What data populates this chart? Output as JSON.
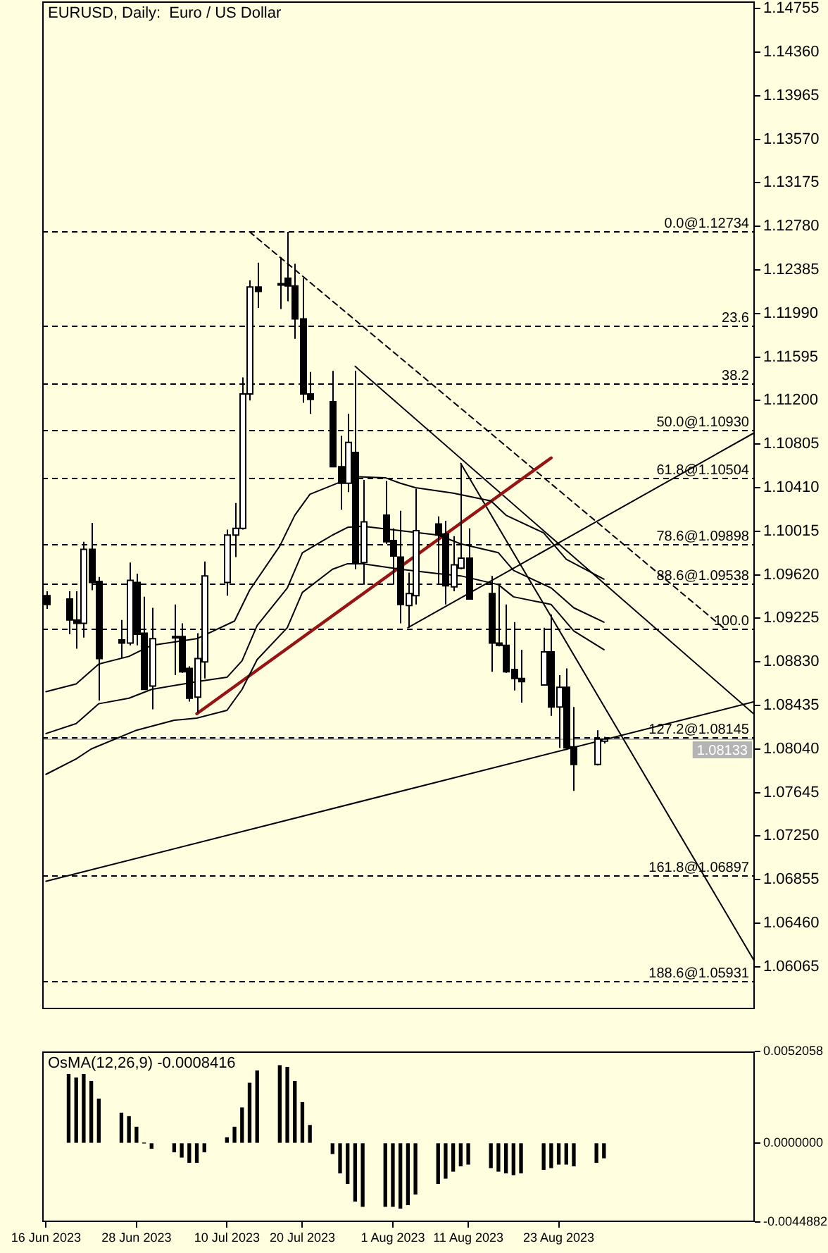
{
  "chart_data": [
    {
      "type": "candlestick",
      "title": "EURUSD, Daily:  Euro / US Dollar",
      "x": [
        "2023-06-16",
        "2023-06-19",
        "2023-06-20",
        "2023-06-21",
        "2023-06-22",
        "2023-06-23",
        "2023-06-26",
        "2023-06-27",
        "2023-06-28",
        "2023-06-29",
        "2023-06-30",
        "2023-07-03",
        "2023-07-04",
        "2023-07-05",
        "2023-07-06",
        "2023-07-07",
        "2023-07-10",
        "2023-07-11",
        "2023-07-12",
        "2023-07-13",
        "2023-07-14",
        "2023-07-17",
        "2023-07-18",
        "2023-07-19",
        "2023-07-20",
        "2023-07-21",
        "2023-07-24",
        "2023-07-25",
        "2023-07-26",
        "2023-07-27",
        "2023-07-28",
        "2023-07-31",
        "2023-08-01",
        "2023-08-02",
        "2023-08-03",
        "2023-08-04",
        "2023-08-07",
        "2023-08-08",
        "2023-08-09",
        "2023-08-10",
        "2023-08-11",
        "2023-08-14",
        "2023-08-15",
        "2023-08-16",
        "2023-08-17",
        "2023-08-18",
        "2023-08-21",
        "2023-08-22",
        "2023-08-23",
        "2023-08-24",
        "2023-08-25",
        "2023-08-28",
        "2023-08-29"
      ],
      "ohlc": [
        [
          1.0943,
          1.0947,
          1.0931,
          1.0935
        ],
        [
          1.094,
          1.0947,
          1.0908,
          1.0921
        ],
        [
          1.0921,
          1.0947,
          1.0895,
          1.0918
        ],
        [
          1.0918,
          1.0992,
          1.0905,
          1.0985
        ],
        [
          1.0985,
          1.1009,
          1.0948,
          1.0955
        ],
        [
          1.0956,
          1.096,
          1.0848,
          1.0886
        ],
        [
          1.0903,
          1.0921,
          1.0887,
          1.09
        ],
        [
          1.09,
          1.0973,
          1.0898,
          1.0957
        ],
        [
          1.0955,
          1.0963,
          1.0898,
          1.0908
        ],
        [
          1.0909,
          1.0942,
          1.0858,
          1.0858
        ],
        [
          1.0861,
          1.0932,
          1.084,
          1.0904
        ],
        [
          1.0906,
          1.0935,
          1.0871,
          1.0905
        ],
        [
          1.0906,
          1.0918,
          1.0873,
          1.0874
        ],
        [
          1.0877,
          1.0879,
          1.0847,
          1.085
        ],
        [
          1.0851,
          1.0909,
          1.0837,
          1.0886
        ],
        [
          1.0883,
          1.0974,
          1.0868,
          1.0961
        ],
        [
          1.0955,
          1.1003,
          1.0943,
          1.0998
        ],
        [
          1.0998,
          1.1027,
          1.0978,
          1.1004
        ],
        [
          1.1004,
          1.1141,
          1.1003,
          1.1126
        ],
        [
          1.1126,
          1.1229,
          1.112,
          1.1223
        ],
        [
          1.1223,
          1.1245,
          1.1204,
          1.1219
        ],
        [
          1.1226,
          1.125,
          1.1203,
          1.1225
        ],
        [
          1.1231,
          1.1273,
          1.121,
          1.1224
        ],
        [
          1.1224,
          1.1244,
          1.1176,
          1.1194
        ],
        [
          1.1194,
          1.1231,
          1.1118,
          1.1126
        ],
        [
          1.1126,
          1.1146,
          1.1108,
          1.1121
        ],
        [
          1.1119,
          1.1147,
          1.106,
          1.106
        ],
        [
          1.106,
          1.1088,
          1.1021,
          1.1045
        ],
        [
          1.1045,
          1.1108,
          1.1037,
          1.1082
        ],
        [
          1.1073,
          1.1147,
          1.0967,
          1.0972
        ],
        [
          1.0973,
          1.1048,
          1.0953,
          1.101
        ],
        [
          1.1016,
          1.1047,
          1.099,
          1.0992
        ],
        [
          1.0993,
          1.1004,
          1.0953,
          1.0979
        ],
        [
          1.0978,
          1.102,
          1.0918,
          1.0935
        ],
        [
          1.0934,
          1.0964,
          1.0914,
          1.0945
        ],
        [
          1.0943,
          1.104,
          1.0935,
          1.1002
        ],
        [
          1.1008,
          1.1015,
          1.0953,
          1.0998
        ],
        [
          1.0999,
          1.1011,
          1.0935,
          1.0952
        ],
        [
          1.0951,
          1.0997,
          1.0947,
          1.0971
        ],
        [
          1.0968,
          1.1063,
          1.0967,
          1.0977
        ],
        [
          1.0977,
          1.1004,
          1.094,
          1.094
        ],
        [
          1.0945,
          1.0961,
          1.0874,
          1.09
        ],
        [
          1.09,
          1.0953,
          1.0897,
          1.0898
        ],
        [
          1.0898,
          1.0935,
          1.0873,
          1.0874
        ],
        [
          1.0876,
          1.0919,
          1.0857,
          1.0868
        ],
        [
          1.0868,
          1.0894,
          1.0846,
          1.0865
        ],
        [
          1.0862,
          1.0914,
          1.0862,
          1.0892
        ],
        [
          1.0892,
          1.0926,
          1.0834,
          1.0842
        ],
        [
          1.0842,
          1.0871,
          1.0805,
          1.086
        ],
        [
          1.086,
          1.0877,
          1.0803,
          1.0805
        ],
        [
          1.0806,
          1.0842,
          1.0766,
          1.079
        ],
        [
          1.079,
          1.0821,
          1.0789,
          1.0813
        ],
        [
          1.0811,
          1.0815,
          1.0809,
          1.0813
        ]
      ],
      "colors": [
        "#000000",
        "#000000",
        "#000000",
        "#ffffff",
        "#000000",
        "#000000",
        "#000000",
        "#ffffff",
        "#000000",
        "#000000",
        "#ffffff",
        "#000000",
        "#000000",
        "#000000",
        "#ffffff",
        "#ffffff",
        "#ffffff",
        "#ffffff",
        "#ffffff",
        "#ffffff",
        "#000000",
        "#000000",
        "#000000",
        "#000000",
        "#000000",
        "#000000",
        "#000000",
        "#000000",
        "#ffffff",
        "#000000",
        "#ffffff",
        "#000000",
        "#000000",
        "#000000",
        "#ffffff",
        "#ffffff",
        "#000000",
        "#000000",
        "#ffffff",
        "#ffffff",
        "#000000",
        "#000000",
        "#000000",
        "#000000",
        "#000000",
        "#000000",
        "#ffffff",
        "#000000",
        "#ffffff",
        "#000000",
        "#000000",
        "#ffffff",
        "#ffffff"
      ],
      "series": [
        {
          "type": "line",
          "color": "#000000",
          "x": [
            "2023-06-16",
            "2023-06-20",
            "2023-06-23",
            "2023-06-27",
            "2023-06-30",
            "2023-07-06",
            "2023-07-11",
            "2023-07-13",
            "2023-07-17",
            "2023-07-19",
            "2023-07-21",
            "2023-07-25",
            "2023-07-27",
            "2023-07-31",
            "2023-08-02",
            "2023-08-04",
            "2023-08-09",
            "2023-08-14",
            "2023-08-16",
            "2023-08-21",
            "2023-08-24",
            "2023-08-29"
          ],
          "values": [
            1.0856,
            1.0863,
            1.0881,
            1.0888,
            1.0898,
            1.0904,
            1.092,
            1.0948,
            1.0988,
            1.1016,
            1.1035,
            1.1046,
            1.1051,
            1.105,
            1.1045,
            1.1041,
            1.1036,
            1.1029,
            1.1016,
            1.1,
            1.0976,
            1.0958
          ]
        },
        {
          "type": "line",
          "color": "#000000",
          "x": [
            "2023-06-16",
            "2023-06-20",
            "2023-06-23",
            "2023-06-27",
            "2023-06-30",
            "2023-07-06",
            "2023-07-10",
            "2023-07-12",
            "2023-07-14",
            "2023-07-18",
            "2023-07-20",
            "2023-07-24",
            "2023-07-26",
            "2023-07-28",
            "2023-08-02",
            "2023-08-07",
            "2023-08-10",
            "2023-08-15",
            "2023-08-17",
            "2023-08-22",
            "2023-08-25",
            "2023-08-29"
          ],
          "values": [
            1.0818,
            1.0827,
            1.0845,
            1.085,
            1.0858,
            1.0865,
            1.0869,
            1.0884,
            1.0916,
            1.095,
            1.0982,
            1.0998,
            1.1005,
            1.1006,
            1.1002,
            1.0998,
            1.099,
            1.0982,
            1.0966,
            1.095,
            1.0932,
            1.0919
          ]
        },
        {
          "type": "line",
          "color": "#000000",
          "x": [
            "2023-06-16",
            "2023-06-20",
            "2023-06-22",
            "2023-06-28",
            "2023-07-03",
            "2023-07-06",
            "2023-07-10",
            "2023-07-12",
            "2023-07-14",
            "2023-07-18",
            "2023-07-20",
            "2023-07-24",
            "2023-07-26",
            "2023-07-28",
            "2023-08-02",
            "2023-08-07",
            "2023-08-10",
            "2023-08-15",
            "2023-08-17",
            "2023-08-22",
            "2023-08-25",
            "2023-08-29"
          ],
          "values": [
            1.0781,
            1.0795,
            1.0804,
            1.0821,
            1.083,
            1.0832,
            1.0839,
            1.0858,
            1.0885,
            1.0914,
            1.0946,
            1.0967,
            1.0972,
            1.0972,
            1.0967,
            1.0963,
            1.0961,
            1.0953,
            1.0942,
            1.0935,
            1.0911,
            1.0894
          ]
        },
        {
          "type": "line",
          "color": "#961414",
          "x": [
            "2023-07-06",
            "2023-08-22"
          ],
          "values": [
            1.0836,
            1.1068
          ]
        },
        {
          "type": "line",
          "color": "#000000",
          "line_style": "dashed",
          "x": [
            "2023-07-13",
            "2023-09-14"
          ],
          "values": [
            1.1273,
            1.0913
          ]
        },
        {
          "type": "line",
          "color": "#000000",
          "x": [
            "2023-07-27",
            "2023-09-18"
          ],
          "values": [
            1.1151,
            1.0835
          ]
        },
        {
          "type": "line",
          "color": "#000000",
          "x": [
            "2023-08-10",
            "2023-09-18"
          ],
          "values": [
            1.1063,
            1.0611
          ]
        },
        {
          "type": "line",
          "color": "#000000",
          "x": [
            "2023-08-03",
            "2023-09-18"
          ],
          "values": [
            1.0914,
            1.1091
          ]
        },
        {
          "type": "line",
          "color": "#000000",
          "x": [
            "2023-06-16",
            "2023-09-18"
          ],
          "values": [
            1.0684,
            1.0847
          ]
        }
      ],
      "ref_lines": [
        {
          "axis": "y",
          "value": 1.08133,
          "label": "1.08133",
          "color": "#b4b4b4"
        },
        {
          "axis": "y",
          "value": 1.12734,
          "label": "0.0@1.12734",
          "color": "#000000",
          "line_style": "dashed"
        },
        {
          "axis": "y",
          "value": 1.1188,
          "color": "#000000",
          "line_style": "dashed"
        },
        {
          "axis": "y",
          "value": 1.1136,
          "color": "#000000",
          "line_style": "dashed"
        },
        {
          "axis": "y",
          "value": 1.1093,
          "label": "50.0@1.10930",
          "color": "#000000",
          "line_style": "dashed"
        },
        {
          "axis": "y",
          "value": 1.10504,
          "label": "61.8@1.10504",
          "color": "#000000",
          "line_style": "dashed"
        },
        {
          "axis": "y",
          "value": 1.09898,
          "label": "78.6@1.09898",
          "color": "#000000",
          "line_style": "dashed"
        },
        {
          "axis": "y",
          "value": 1.09538,
          "label": "88.6@1.09538",
          "color": "#000000",
          "line_style": "dashed"
        },
        {
          "axis": "y",
          "value": 1.0913,
          "color": "#000000",
          "line_style": "dashed"
        },
        {
          "axis": "y",
          "value": 1.08145,
          "label": "127.2@1.08145",
          "color": "#000000",
          "line_style": "dashed"
        },
        {
          "axis": "y",
          "value": 1.06897,
          "label": "161.8@1.06897",
          "color": "#000000",
          "line_style": "dashed"
        },
        {
          "axis": "y",
          "value": 1.05931,
          "label": "188.6@1.05931",
          "color": "#000000",
          "line_style": "dashed"
        }
      ],
      "annotations": [
        {
          "text": "23.6",
          "y": 1.1188
        },
        {
          "text": "38.2",
          "y": 1.1136
        },
        {
          "text": "100.0",
          "y": 1.0913
        }
      ],
      "xlim": [
        "2023-06-15T12:00",
        "2023-09-18"
      ],
      "ylim": [
        1.0568,
        1.1482
      ],
      "yticks": [
        1.06065,
        {
          "value": 1.0646,
          "label": "1.06460"
        },
        1.06855,
        {
          "value": 1.0725,
          "label": "1.07250"
        },
        1.07645,
        {
          "value": 1.0804,
          "label": "1.08040"
        },
        1.08435,
        {
          "value": 1.0883,
          "label": "1.08830"
        },
        1.09225,
        {
          "value": 1.0962,
          "label": "1.09620"
        },
        1.10015,
        {
          "value": 1.1041,
          "label": "1.10410"
        },
        1.10805,
        {
          "value": 1.112,
          "label": "1.11200"
        },
        1.11595,
        {
          "value": 1.1199,
          "label": "1.11990"
        },
        1.12385,
        {
          "value": 1.1278,
          "label": "1.12780"
        },
        1.13175,
        {
          "value": 1.1357,
          "label": "1.13570"
        },
        1.13965,
        {
          "value": 1.1436,
          "label": "1.14360"
        },
        1.14755
      ],
      "tick_labels": "y"
    },
    {
      "type": "bar",
      "title": "OsMA(12,26,9) -0.0008416",
      "color": "#000000",
      "x": [
        "2023-06-19",
        "2023-06-20",
        "2023-06-21",
        "2023-06-22",
        "2023-06-23",
        "2023-06-26",
        "2023-06-27",
        "2023-06-28",
        "2023-06-29",
        "2023-06-30",
        "2023-07-03",
        "2023-07-04",
        "2023-07-05",
        "2023-07-06",
        "2023-07-07",
        "2023-07-10",
        "2023-07-11",
        "2023-07-12",
        "2023-07-13",
        "2023-07-14",
        "2023-07-17",
        "2023-07-18",
        "2023-07-19",
        "2023-07-20",
        "2023-07-21",
        "2023-07-24",
        "2023-07-25",
        "2023-07-26",
        "2023-07-27",
        "2023-07-28",
        "2023-07-31",
        "2023-08-01",
        "2023-08-02",
        "2023-08-03",
        "2023-08-04",
        "2023-08-07",
        "2023-08-08",
        "2023-08-09",
        "2023-08-10",
        "2023-08-11",
        "2023-08-14",
        "2023-08-15",
        "2023-08-16",
        "2023-08-17",
        "2023-08-18",
        "2023-08-21",
        "2023-08-22",
        "2023-08-23",
        "2023-08-24",
        "2023-08-25",
        "2023-08-28",
        "2023-08-29"
      ],
      "values": [
        0.0039,
        0.0037,
        0.0039,
        0.0035,
        0.0025,
        0.0017,
        0.0015,
        0.0009,
        0,
        -0.0003,
        -0.0005,
        -0.0008,
        -0.0011,
        -0.0011,
        -0.0005,
        0.0003,
        0.0009,
        0.002,
        0.0034,
        0.0041,
        0.0044,
        0.0043,
        0.0035,
        0.0023,
        0.001,
        -0.0006,
        -0.0017,
        -0.0023,
        -0.0033,
        -0.0036,
        -0.0036,
        -0.0036,
        -0.0037,
        -0.0035,
        -0.0029,
        -0.0023,
        -0.002,
        -0.0016,
        -0.0013,
        -0.0012,
        -0.0014,
        -0.0016,
        -0.0017,
        -0.0018,
        -0.0017,
        -0.0015,
        -0.0014,
        -0.0012,
        -0.0012,
        -0.0013,
        -0.0011,
        -0.0008416
      ],
      "xlim": [
        "2023-06-15T12:00",
        "2023-09-18"
      ],
      "xticks": [
        {
          "value": "2023-06-16",
          "label": "16 Jun 2023"
        },
        {
          "value": "2023-06-28",
          "label": "28 Jun 2023"
        },
        {
          "value": "2023-07-10",
          "label": "10 Jul 2023"
        },
        {
          "value": "2023-07-20",
          "label": "20 Jul 2023"
        },
        {
          "value": "2023-08-01",
          "label": "1 Aug 2023"
        },
        {
          "value": "2023-08-11",
          "label": "11 Aug 2023"
        },
        {
          "value": "2023-08-23",
          "label": "23 Aug 2023"
        }
      ],
      "ylim": [
        -0.0044882,
        0.0052058
      ],
      "yticks": [
        -0.0044882,
        {
          "value": 0,
          "label": "0.0000000"
        },
        0.0052058
      ]
    }
  ]
}
